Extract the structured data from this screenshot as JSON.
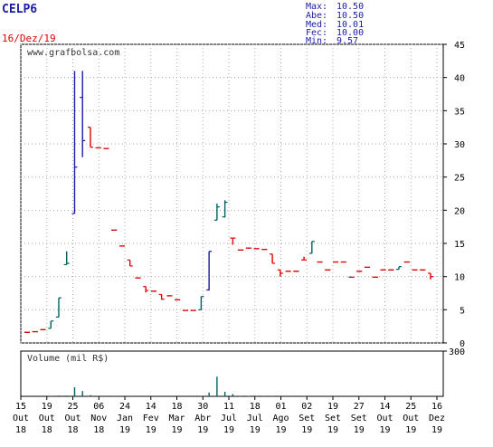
{
  "header": {
    "ticker": "CELP6",
    "date": "16/Dez/19",
    "stats": [
      {
        "label": "Max:",
        "value": "10.50"
      },
      {
        "label": "Abe:",
        "value": "10.50"
      },
      {
        "label": "Med:",
        "value": "10.01"
      },
      {
        "label": "Fec:",
        "value": "10.00"
      },
      {
        "label": "Min:",
        "value": "9.57"
      }
    ]
  },
  "watermark": "www.grafbolsa.com",
  "volume_label": "Volume (mil R$)",
  "colors": {
    "up": "#006060",
    "down": "#dd0000",
    "flat": "#dd0000",
    "blue": "#1a1aa8",
    "volume": "#006060",
    "grid": "#aaaaaa",
    "ticker": "#1a1aa8",
    "date": "#dd0000"
  },
  "chart_data": {
    "type": "ohlc",
    "x_ticks": [
      {
        "day": "15",
        "month": "Out",
        "year": "18"
      },
      {
        "day": "19",
        "month": "Out",
        "year": "18"
      },
      {
        "day": "25",
        "month": "Out",
        "year": "18"
      },
      {
        "day": "06",
        "month": "Nov",
        "year": "18"
      },
      {
        "day": "24",
        "month": "Jan",
        "year": "19"
      },
      {
        "day": "14",
        "month": "Fev",
        "year": "19"
      },
      {
        "day": "18",
        "month": "Mar",
        "year": "19"
      },
      {
        "day": "30",
        "month": "Abr",
        "year": "19"
      },
      {
        "day": "11",
        "month": "Jul",
        "year": "19"
      },
      {
        "day": "18",
        "month": "Jul",
        "year": "19"
      },
      {
        "day": "01",
        "month": "Ago",
        "year": "19"
      },
      {
        "day": "02",
        "month": "Set",
        "year": "19"
      },
      {
        "day": "19",
        "month": "Set",
        "year": "19"
      },
      {
        "day": "27",
        "month": "Set",
        "year": "19"
      },
      {
        "day": "14",
        "month": "Out",
        "year": "19"
      },
      {
        "day": "25",
        "month": "Out",
        "year": "19"
      },
      {
        "day": "16",
        "month": "Dez",
        "year": "19"
      }
    ],
    "price_axis": {
      "min": 0,
      "max": 45,
      "ticks": [
        "0",
        "5",
        "10",
        "15",
        "20",
        "25",
        "30",
        "35",
        "40",
        "45"
      ]
    },
    "volume_axis": {
      "max": 300,
      "ticks": [
        "300"
      ]
    },
    "bars": [
      {
        "o": 1.6,
        "h": 1.6,
        "l": 1.6,
        "c": 1.6,
        "v": 0
      },
      {
        "o": 1.7,
        "h": 1.7,
        "l": 1.7,
        "c": 1.7,
        "v": 0
      },
      {
        "o": 2.0,
        "h": 2.0,
        "l": 2.0,
        "c": 2.0,
        "v": 0
      },
      {
        "o": 2.2,
        "h": 3.3,
        "l": 2.2,
        "c": 3.3,
        "v": 2
      },
      {
        "o": 3.9,
        "h": 6.8,
        "l": 3.9,
        "c": 6.8,
        "v": 5
      },
      {
        "o": 11.8,
        "h": 13.8,
        "l": 11.8,
        "c": 12.0,
        "v": 5
      },
      {
        "o": 19.5,
        "h": 41.0,
        "l": 19.5,
        "c": 26.5,
        "v": 60
      },
      {
        "o": 37.0,
        "h": 41.0,
        "l": 28.0,
        "c": 30.5,
        "v": 35
      },
      {
        "o": 32.5,
        "h": 32.5,
        "l": 29.5,
        "c": 29.5,
        "v": 8
      },
      {
        "o": 29.4,
        "h": 29.4,
        "l": 29.4,
        "c": 29.4,
        "v": 2
      },
      {
        "o": 29.3,
        "h": 29.3,
        "l": 29.3,
        "c": 29.3,
        "v": 2
      },
      {
        "o": 17.0,
        "h": 17.0,
        "l": 17.0,
        "c": 17.0,
        "v": 2
      },
      {
        "o": 14.6,
        "h": 14.6,
        "l": 14.6,
        "c": 14.6,
        "v": 1
      },
      {
        "o": 12.5,
        "h": 12.5,
        "l": 11.6,
        "c": 11.6,
        "v": 1
      },
      {
        "o": 9.8,
        "h": 9.8,
        "l": 9.8,
        "c": 9.8,
        "v": 1
      },
      {
        "o": 8.5,
        "h": 8.5,
        "l": 7.6,
        "c": 7.9,
        "v": 1
      },
      {
        "o": 7.8,
        "h": 7.8,
        "l": 7.8,
        "c": 7.8,
        "v": 1
      },
      {
        "o": 7.3,
        "h": 7.3,
        "l": 6.5,
        "c": 6.6,
        "v": 1
      },
      {
        "o": 7.1,
        "h": 7.1,
        "l": 7.1,
        "c": 7.1,
        "v": 1
      },
      {
        "o": 6.5,
        "h": 6.5,
        "l": 6.5,
        "c": 6.5,
        "v": 1
      },
      {
        "o": 4.9,
        "h": 4.9,
        "l": 4.9,
        "c": 4.9,
        "v": 1
      },
      {
        "o": 4.9,
        "h": 4.9,
        "l": 4.9,
        "c": 4.9,
        "v": 1
      },
      {
        "o": 5.0,
        "h": 7.0,
        "l": 5.0,
        "c": 7.0,
        "v": 2
      },
      {
        "o": 8.0,
        "h": 13.8,
        "l": 7.9,
        "c": 13.8,
        "v": 25
      },
      {
        "o": 18.5,
        "h": 21.0,
        "l": 18.5,
        "c": 20.5,
        "v": 130
      },
      {
        "o": 19.0,
        "h": 21.5,
        "l": 18.9,
        "c": 21.2,
        "v": 30
      },
      {
        "o": 15.8,
        "h": 15.8,
        "l": 14.8,
        "c": 15.8,
        "v": 15
      },
      {
        "o": 14.0,
        "h": 14.0,
        "l": 14.0,
        "c": 14.0,
        "v": 3
      },
      {
        "o": 14.3,
        "h": 14.3,
        "l": 14.3,
        "c": 14.3,
        "v": 3
      },
      {
        "o": 14.2,
        "h": 14.2,
        "l": 14.2,
        "c": 14.2,
        "v": 2
      },
      {
        "o": 14.1,
        "h": 14.1,
        "l": 14.1,
        "c": 14.1,
        "v": 2
      },
      {
        "o": 13.4,
        "h": 13.4,
        "l": 12.0,
        "c": 12.0,
        "v": 2
      },
      {
        "o": 11.0,
        "h": 11.0,
        "l": 10.0,
        "c": 10.5,
        "v": 1
      },
      {
        "o": 10.8,
        "h": 10.8,
        "l": 10.8,
        "c": 10.8,
        "v": 1
      },
      {
        "o": 10.8,
        "h": 10.8,
        "l": 10.8,
        "c": 10.8,
        "v": 1
      },
      {
        "o": 12.5,
        "h": 13.0,
        "l": 12.5,
        "c": 12.5,
        "v": 3
      },
      {
        "o": 13.5,
        "h": 15.3,
        "l": 13.5,
        "c": 15.3,
        "v": 4
      },
      {
        "o": 12.2,
        "h": 12.2,
        "l": 12.2,
        "c": 12.2,
        "v": 1
      },
      {
        "o": 11.0,
        "h": 11.0,
        "l": 11.0,
        "c": 11.0,
        "v": 1
      },
      {
        "o": 12.2,
        "h": 12.2,
        "l": 12.2,
        "c": 12.2,
        "v": 1
      },
      {
        "o": 12.2,
        "h": 12.2,
        "l": 12.2,
        "c": 12.2,
        "v": 1
      },
      {
        "o": 9.9,
        "h": 9.9,
        "l": 9.9,
        "c": 9.9,
        "v": 1
      },
      {
        "o": 10.8,
        "h": 10.8,
        "l": 10.8,
        "c": 10.8,
        "v": 1
      },
      {
        "o": 11.4,
        "h": 11.4,
        "l": 11.4,
        "c": 11.4,
        "v": 1
      },
      {
        "o": 9.9,
        "h": 9.9,
        "l": 9.9,
        "c": 9.9,
        "v": 1
      },
      {
        "o": 11.0,
        "h": 11.0,
        "l": 11.0,
        "c": 11.0,
        "v": 1
      },
      {
        "o": 11.0,
        "h": 11.0,
        "l": 11.0,
        "c": 11.0,
        "v": 1
      },
      {
        "o": 11.1,
        "h": 11.5,
        "l": 11.1,
        "c": 11.5,
        "v": 1
      },
      {
        "o": 12.2,
        "h": 12.2,
        "l": 12.2,
        "c": 12.2,
        "v": 1
      },
      {
        "o": 11.0,
        "h": 11.0,
        "l": 11.0,
        "c": 11.0,
        "v": 1
      },
      {
        "o": 11.0,
        "h": 11.0,
        "l": 11.0,
        "c": 11.0,
        "v": 1
      },
      {
        "o": 10.5,
        "h": 10.5,
        "l": 9.57,
        "c": 10.0,
        "v": 1
      }
    ]
  }
}
